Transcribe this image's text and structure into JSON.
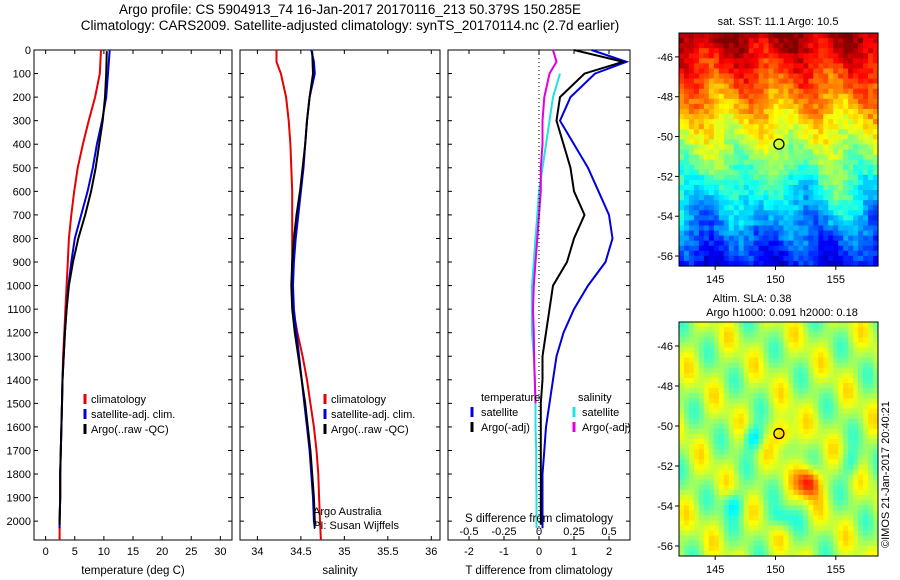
{
  "header": {
    "line1": "Argo profile: CS 5904913_74 16-Jan-2017 20170116_213 50.379S 150.285E",
    "line2": "Climatology: CARS2009. Satellite-adjusted climatology: synTS_20170114.nc (2.7d earlier)"
  },
  "colors": {
    "climatology": "#e60000",
    "satellite": "#0000dd",
    "argo": "#000000",
    "cyan": "#22e0e6",
    "magenta": "#e000e0"
  },
  "chart_data": [
    {
      "type": "line",
      "xlabel": "temperature (deg C)",
      "xlim": [
        -2,
        32
      ],
      "ylim": [
        2080,
        0
      ],
      "xticks": [
        0,
        5,
        10,
        15,
        20,
        25,
        30
      ],
      "yticks": [
        0,
        100,
        200,
        300,
        400,
        500,
        600,
        700,
        800,
        900,
        1000,
        1100,
        1200,
        1300,
        1400,
        1500,
        1600,
        1700,
        1800,
        1900,
        2000
      ],
      "legend": [
        "climatology",
        "satellite-adj. clim.",
        "Argo(..raw -QC)"
      ],
      "series": [
        {
          "name": "climatology",
          "color_key": "climatology",
          "points": [
            [
              9.5,
              0
            ],
            [
              9.3,
              100
            ],
            [
              8.5,
              200
            ],
            [
              7.4,
              300
            ],
            [
              6.4,
              400
            ],
            [
              5.5,
              500
            ],
            [
              4.9,
              600
            ],
            [
              4.4,
              700
            ],
            [
              4.0,
              800
            ],
            [
              3.8,
              900
            ],
            [
              3.6,
              1000
            ],
            [
              3.4,
              1100
            ],
            [
              3.2,
              1200
            ],
            [
              3.0,
              1300
            ],
            [
              2.9,
              1400
            ],
            [
              2.8,
              1500
            ],
            [
              2.7,
              1600
            ],
            [
              2.6,
              1700
            ],
            [
              2.5,
              1800
            ],
            [
              2.5,
              1900
            ],
            [
              2.4,
              2000
            ],
            [
              2.4,
              2080
            ]
          ]
        },
        {
          "name": "satellite-adj. clim.",
          "color_key": "satellite",
          "points": [
            [
              11.0,
              0
            ],
            [
              10.7,
              100
            ],
            [
              10.4,
              200
            ],
            [
              9.7,
              300
            ],
            [
              8.8,
              400
            ],
            [
              8.1,
              500
            ],
            [
              7.2,
              600
            ],
            [
              6.1,
              700
            ],
            [
              5.0,
              800
            ],
            [
              4.4,
              900
            ],
            [
              3.9,
              1000
            ],
            [
              3.6,
              1100
            ],
            [
              3.3,
              1200
            ],
            [
              3.1,
              1300
            ],
            [
              2.9,
              1400
            ],
            [
              2.8,
              1500
            ],
            [
              2.7,
              1600
            ],
            [
              2.6,
              1700
            ],
            [
              2.5,
              1800
            ],
            [
              2.5,
              1900
            ],
            [
              2.4,
              2000
            ],
            [
              2.4,
              2030
            ]
          ]
        },
        {
          "name": "Argo(..raw -QC)",
          "color_key": "argo",
          "points": [
            [
              10.5,
              5
            ],
            [
              10.4,
              100
            ],
            [
              10.2,
              200
            ],
            [
              9.8,
              300
            ],
            [
              9.2,
              400
            ],
            [
              8.6,
              500
            ],
            [
              7.8,
              600
            ],
            [
              6.8,
              700
            ],
            [
              5.6,
              800
            ],
            [
              4.7,
              900
            ],
            [
              4.0,
              1000
            ],
            [
              3.6,
              1100
            ],
            [
              3.3,
              1200
            ],
            [
              3.1,
              1300
            ],
            [
              2.9,
              1400
            ],
            [
              2.8,
              1500
            ],
            [
              2.7,
              1600
            ],
            [
              2.6,
              1700
            ],
            [
              2.5,
              1800
            ],
            [
              2.5,
              1900
            ],
            [
              2.4,
              2000
            ],
            [
              2.4,
              2015
            ]
          ]
        }
      ]
    },
    {
      "type": "line",
      "xlabel": "salinity",
      "xlim": [
        33.8,
        36.1
      ],
      "ylim": [
        2080,
        0
      ],
      "xticks": [
        34,
        34.5,
        35,
        35.5,
        36
      ],
      "legend": [
        "climatology",
        "satellite-adj. clim.",
        "Argo(..raw -QC)"
      ],
      "series": [
        {
          "name": "climatology",
          "color_key": "climatology",
          "points": [
            [
              34.22,
              0
            ],
            [
              34.22,
              50
            ],
            [
              34.27,
              100
            ],
            [
              34.33,
              200
            ],
            [
              34.36,
              300
            ],
            [
              34.38,
              400
            ],
            [
              34.39,
              500
            ],
            [
              34.4,
              600
            ],
            [
              34.4,
              700
            ],
            [
              34.4,
              800
            ],
            [
              34.4,
              900
            ],
            [
              34.4,
              1000
            ],
            [
              34.41,
              1100
            ],
            [
              34.46,
              1200
            ],
            [
              34.52,
              1300
            ],
            [
              34.57,
              1400
            ],
            [
              34.61,
              1500
            ],
            [
              34.65,
              1600
            ],
            [
              34.68,
              1700
            ],
            [
              34.7,
              1800
            ],
            [
              34.71,
              1900
            ],
            [
              34.72,
              2000
            ],
            [
              34.73,
              2080
            ]
          ]
        },
        {
          "name": "satellite-adj. clim.",
          "color_key": "satellite",
          "points": [
            [
              34.62,
              0
            ],
            [
              34.65,
              50
            ],
            [
              34.66,
              100
            ],
            [
              34.6,
              200
            ],
            [
              34.57,
              300
            ],
            [
              34.55,
              400
            ],
            [
              34.53,
              500
            ],
            [
              34.5,
              600
            ],
            [
              34.47,
              700
            ],
            [
              34.44,
              800
            ],
            [
              34.42,
              900
            ],
            [
              34.41,
              1000
            ],
            [
              34.42,
              1100
            ],
            [
              34.45,
              1200
            ],
            [
              34.48,
              1300
            ],
            [
              34.51,
              1400
            ],
            [
              34.54,
              1500
            ],
            [
              34.57,
              1600
            ],
            [
              34.6,
              1700
            ],
            [
              34.62,
              1800
            ],
            [
              34.64,
              1900
            ],
            [
              34.65,
              2000
            ],
            [
              34.66,
              2030
            ]
          ]
        },
        {
          "name": "Argo(..raw -QC)",
          "color_key": "argo",
          "points": [
            [
              34.63,
              5
            ],
            [
              34.64,
              100
            ],
            [
              34.6,
              200
            ],
            [
              34.57,
              300
            ],
            [
              34.55,
              400
            ],
            [
              34.52,
              500
            ],
            [
              34.49,
              600
            ],
            [
              34.45,
              700
            ],
            [
              34.42,
              800
            ],
            [
              34.4,
              900
            ],
            [
              34.39,
              1000
            ],
            [
              34.4,
              1100
            ],
            [
              34.43,
              1200
            ],
            [
              34.47,
              1300
            ],
            [
              34.51,
              1400
            ],
            [
              34.55,
              1500
            ],
            [
              34.58,
              1600
            ],
            [
              34.61,
              1700
            ],
            [
              34.63,
              1800
            ],
            [
              34.65,
              1900
            ],
            [
              34.66,
              2000
            ],
            [
              34.67,
              2015
            ]
          ]
        }
      ],
      "notes": [
        "Argo Australia",
        "PI: Susan Wijffels"
      ]
    },
    {
      "type": "line",
      "xlabel": "T difference from climatology",
      "xlabel_top": "S difference from climatology",
      "xlim": [
        -2.6,
        2.6
      ],
      "ylim": [
        2080,
        0
      ],
      "xticks": [
        -2,
        -1,
        0,
        1,
        2
      ],
      "xticks_top": [
        "-0.5",
        "-0.25",
        "0",
        "0.25",
        "0.5"
      ],
      "legend_left_title": "temperature",
      "legend_right_title": "salinity",
      "legend_left": [
        "satellite",
        "Argo(-adj)"
      ],
      "legend_right": [
        "satellite",
        "Argo(-adj)"
      ],
      "series": [
        {
          "name": "T satellite",
          "color_key": "satellite",
          "points": [
            [
              1.5,
              0
            ],
            [
              2.5,
              50
            ],
            [
              1.6,
              100
            ],
            [
              0.9,
              200
            ],
            [
              0.6,
              300
            ],
            [
              1.0,
              400
            ],
            [
              1.4,
              500
            ],
            [
              1.7,
              600
            ],
            [
              2.0,
              700
            ],
            [
              2.1,
              800
            ],
            [
              1.9,
              900
            ],
            [
              1.4,
              1000
            ],
            [
              1.0,
              1100
            ],
            [
              0.7,
              1200
            ],
            [
              0.5,
              1300
            ],
            [
              0.4,
              1400
            ],
            [
              0.3,
              1500
            ],
            [
              0.2,
              1600
            ],
            [
              0.15,
              1700
            ],
            [
              0.1,
              1800
            ],
            [
              0.1,
              1900
            ],
            [
              0.1,
              2000
            ],
            [
              0.1,
              2030
            ]
          ]
        },
        {
          "name": "T Argo(-adj)",
          "color_key": "argo",
          "points": [
            [
              1.0,
              0
            ],
            [
              2.4,
              50
            ],
            [
              1.3,
              100
            ],
            [
              0.6,
              200
            ],
            [
              0.5,
              300
            ],
            [
              0.7,
              400
            ],
            [
              0.9,
              500
            ],
            [
              1.0,
              600
            ],
            [
              1.3,
              700
            ],
            [
              1.0,
              800
            ],
            [
              0.8,
              900
            ],
            [
              0.4,
              1000
            ],
            [
              0.3,
              1100
            ],
            [
              0.2,
              1200
            ],
            [
              0.1,
              1300
            ],
            [
              0.1,
              1400
            ],
            [
              0.05,
              1500
            ],
            [
              0.05,
              1600
            ],
            [
              0.05,
              1700
            ],
            [
              0.05,
              1800
            ],
            [
              0.05,
              1900
            ],
            [
              0.05,
              2000
            ],
            [
              0.05,
              2015
            ]
          ]
        },
        {
          "name": "S satellite",
          "color_key": "cyan",
          "points": [
            [
              0.6,
              100
            ],
            [
              0.4,
              200
            ],
            [
              0.3,
              300
            ],
            [
              0.2,
              400
            ],
            [
              0.1,
              500
            ],
            [
              0.0,
              600
            ],
            [
              -0.05,
              700
            ],
            [
              -0.1,
              800
            ],
            [
              -0.15,
              900
            ],
            [
              -0.2,
              1000
            ],
            [
              -0.2,
              1100
            ],
            [
              -0.2,
              1200
            ],
            [
              -0.15,
              1300
            ],
            [
              -0.12,
              1400
            ],
            [
              -0.1,
              1500
            ],
            [
              -0.1,
              1600
            ],
            [
              -0.08,
              1700
            ],
            [
              -0.08,
              1800
            ],
            [
              -0.07,
              1900
            ],
            [
              -0.07,
              2000
            ],
            [
              -0.07,
              2030
            ]
          ]
        },
        {
          "name": "S Argo(-adj)",
          "color_key": "magenta",
          "points": [
            [
              0.4,
              0
            ],
            [
              0.5,
              50
            ],
            [
              0.3,
              100
            ],
            [
              0.15,
              200
            ],
            [
              0.1,
              300
            ],
            [
              0.1,
              400
            ],
            [
              0.05,
              500
            ],
            [
              0.05,
              600
            ],
            [
              0.0,
              700
            ],
            [
              -0.05,
              800
            ],
            [
              -0.1,
              900
            ],
            [
              -0.15,
              1000
            ],
            [
              -0.17,
              1100
            ],
            [
              -0.15,
              1200
            ],
            [
              -0.14,
              1300
            ],
            [
              -0.12,
              1400
            ],
            [
              -0.1,
              1500
            ]
          ]
        }
      ]
    },
    {
      "type": "heatmap",
      "title": "sat. SST: 11.1  Argo: 10.5",
      "xlim": [
        142,
        158.5
      ],
      "ylim": [
        -56.5,
        -44.8
      ],
      "xticks": [
        145,
        150,
        155
      ],
      "yticks": [
        -46,
        -48,
        -50,
        -52,
        -54,
        -56
      ],
      "marker": [
        150.285,
        -50.379
      ]
    },
    {
      "type": "heatmap",
      "title": "Altim. SLA: 0.38",
      "subtitle": "Argo h1000: 0.091 h2000: 0.18",
      "xlim": [
        142,
        158.5
      ],
      "ylim": [
        -56.5,
        -44.8
      ],
      "xticks": [
        145,
        150,
        155
      ],
      "yticks": [
        -46,
        -48,
        -50,
        -52,
        -54,
        -56
      ],
      "marker": [
        150.285,
        -50.379
      ]
    }
  ],
  "credit": "©IMOS 21-Jan-2017 20:40:21"
}
